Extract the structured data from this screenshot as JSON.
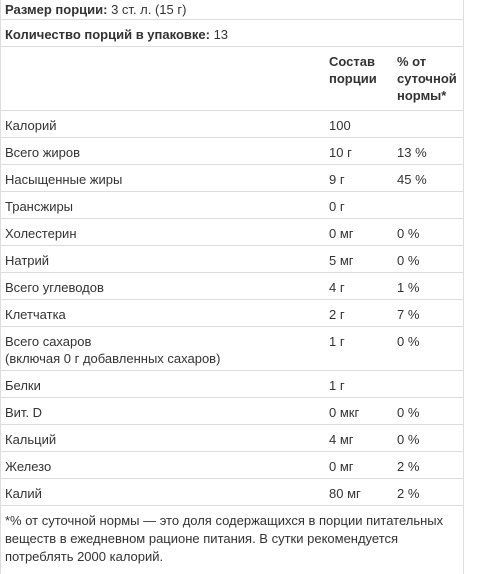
{
  "serving": {
    "label": "Размер порции:",
    "value": "3 ст. л. (15 г)"
  },
  "servings": {
    "label": "Количество порций в упаковке:",
    "value": "13"
  },
  "table": {
    "headers": [
      "Состав порции",
      "% от суточной нормы*"
    ],
    "rows": [
      {
        "name": "Калорий",
        "amount": "100"
      },
      {
        "name": "Всего жиров",
        "amount": "10 г",
        "percent": "13 %"
      },
      {
        "name": "Насыщенные жиры",
        "amount": "9 г",
        "percent": "45 %"
      },
      {
        "name": "Трансжиры",
        "amount": "0 г"
      },
      {
        "name": "Холестерин",
        "amount": "0 мг",
        "percent": "0 %"
      },
      {
        "name": "Натрий",
        "amount": "5 мг",
        "percent": "0 %"
      },
      {
        "name": "Всего углеводов",
        "amount": "4 г",
        "percent": "1 %"
      },
      {
        "name": "Клетчатка",
        "amount": "2 г",
        "percent": "7 %"
      },
      {
        "name": "Всего сахаров",
        "note": "(включая 0 г добавленных сахаров)",
        "amount": "1 г",
        "percent": "0 %"
      },
      {
        "name": "Белки",
        "amount": "1 г"
      },
      {
        "name": "Вит. D",
        "amount": "0 мкг",
        "percent": "0 %"
      },
      {
        "name": "Кальций",
        "amount": "4 мг",
        "percent": "0 %"
      },
      {
        "name": "Железо",
        "amount": "0 мг",
        "percent": "2 %"
      },
      {
        "name": "Калий",
        "amount": "80 мг",
        "percent": "2 %"
      }
    ]
  },
  "footnote": "*% от суточной нормы — это доля содержащихся в порции питательных веществ в ежедневном рационе питания. В сутки рекомендуется потреблять 2000 калорий."
}
